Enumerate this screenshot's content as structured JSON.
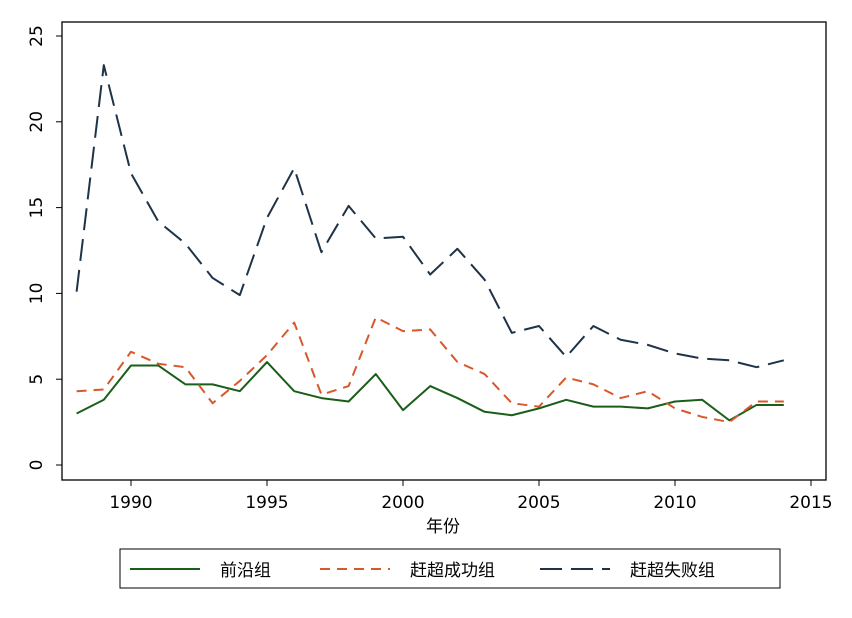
{
  "chart_data": {
    "type": "line",
    "title": "",
    "xlabel": "年份",
    "ylabel": "",
    "xlim": [
      1988,
      2015
    ],
    "ylim": [
      0,
      25
    ],
    "xticks": [
      1990,
      1995,
      2000,
      2005,
      2010,
      2015
    ],
    "yticks": [
      0,
      5,
      10,
      15,
      20,
      25
    ],
    "grid": false,
    "legend_position": "bottom",
    "x": [
      1988,
      1989,
      1990,
      1991,
      1992,
      1993,
      1994,
      1995,
      1996,
      1997,
      1998,
      1999,
      2000,
      2001,
      2002,
      2003,
      2004,
      2005,
      2006,
      2007,
      2008,
      2009,
      2010,
      2011,
      2012,
      2013,
      2014
    ],
    "series": [
      {
        "name": "前沿组",
        "color": "#1a5e1a",
        "style": "solid",
        "values": [
          3.0,
          3.8,
          5.8,
          5.8,
          4.7,
          4.7,
          4.3,
          6.0,
          4.3,
          3.9,
          3.7,
          5.3,
          3.2,
          4.6,
          3.9,
          3.1,
          2.9,
          3.3,
          3.8,
          3.4,
          3.4,
          3.3,
          3.7,
          3.8,
          2.6,
          3.5,
          3.5
        ]
      },
      {
        "name": "赶超成功组",
        "color": "#d9582b",
        "style": "dashed",
        "values": [
          4.3,
          4.4,
          6.6,
          5.9,
          5.7,
          3.6,
          4.9,
          6.4,
          8.3,
          4.1,
          4.6,
          8.6,
          7.8,
          7.9,
          6.0,
          5.3,
          3.6,
          3.4,
          5.1,
          4.7,
          3.9,
          4.3,
          3.3,
          2.8,
          2.5,
          3.7,
          3.7
        ]
      },
      {
        "name": "赶超失败组",
        "color": "#1f3347",
        "style": "longdash",
        "values": [
          10.1,
          23.3,
          17.0,
          14.2,
          12.9,
          10.9,
          9.9,
          14.4,
          17.3,
          12.4,
          15.1,
          13.2,
          13.3,
          11.1,
          12.6,
          10.8,
          7.7,
          8.1,
          6.3,
          8.1,
          7.3,
          7.0,
          6.5,
          6.2,
          6.1,
          5.7,
          6.1
        ]
      }
    ]
  }
}
